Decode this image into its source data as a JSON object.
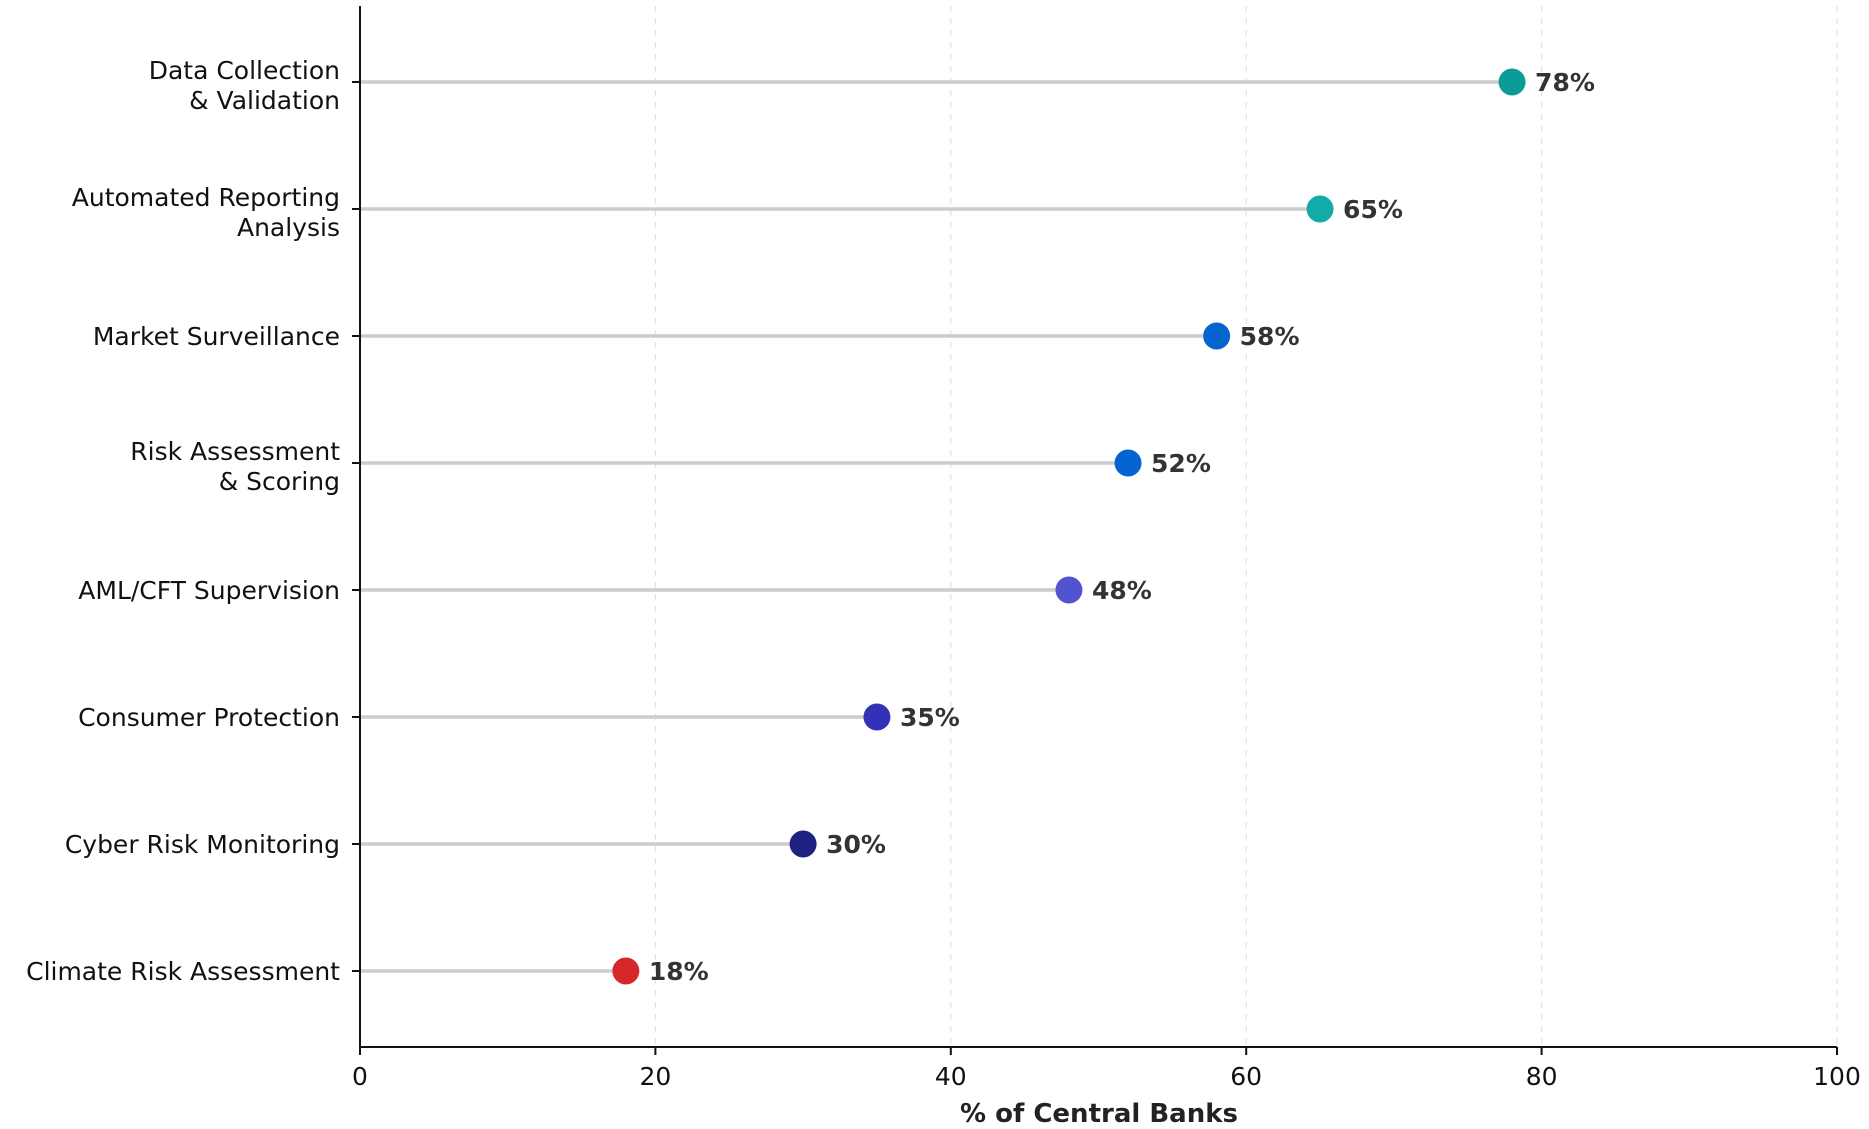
{
  "chart_data": {
    "type": "lollipop",
    "orientation": "horizontal",
    "title": "",
    "xlabel": "% of Central Banks",
    "ylabel": "",
    "xlim": [
      0,
      100
    ],
    "xticks": [
      0,
      20,
      40,
      60,
      80,
      100
    ],
    "grid": "vertical dashed",
    "value_suffix": "%",
    "categories": [
      [
        "Data Collection",
        "& Validation"
      ],
      [
        "Automated Reporting",
        "Analysis"
      ],
      [
        "Market Surveillance"
      ],
      [
        "Risk Assessment",
        "& Scoring"
      ],
      [
        "AML/CFT Supervision"
      ],
      [
        "Consumer Protection"
      ],
      [
        "Cyber Risk Monitoring"
      ],
      [
        "Climate Risk Assessment"
      ]
    ],
    "values": [
      78,
      65,
      58,
      52,
      48,
      35,
      30,
      18
    ],
    "colors": [
      "#0b9c9a",
      "#12aba9",
      "#0565d0",
      "#0565d0",
      "#5352d0",
      "#3431b8",
      "#1e217f",
      "#d62828"
    ],
    "stem_color": "#cccccc"
  }
}
